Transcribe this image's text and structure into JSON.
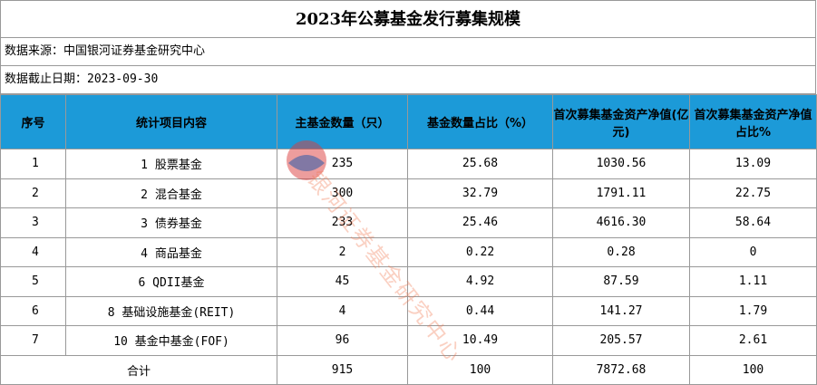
{
  "title": "2023年公募基金发行募集规模",
  "source": "数据来源：中国银河证券基金研究中心",
  "date": "数据截止日期：2023-09-30",
  "table": {
    "header": [
      "序号",
      "统计项目内容",
      "主基金数量（只）",
      "基金数量占比（%）",
      "首次募集基金资产净值(亿元)",
      "首次募集基金资产净值占比%"
    ],
    "rows": [
      [
        "1",
        "1 股票基金",
        "235",
        "25.68",
        "1030.56",
        "13.09"
      ],
      [
        "2",
        "2 混合基金",
        "300",
        "32.79",
        "1791.11",
        "22.75"
      ],
      [
        "3",
        "3 债券基金",
        "233",
        "25.46",
        "4616.30",
        "58.64"
      ],
      [
        "4",
        "4 商品基金",
        "2",
        "0.22",
        "0.28",
        "0"
      ],
      [
        "5",
        "6 QDII基金",
        "45",
        "4.92",
        "87.59",
        "1.11"
      ],
      [
        "6",
        "8 基础设施基金(REIT)",
        "4",
        "0.44",
        "141.27",
        "1.79"
      ],
      [
        "7",
        "10 基金中基金(FOF)",
        "96",
        "10.49",
        "205.57",
        "2.61"
      ]
    ],
    "total": [
      "合计",
      "915",
      "100",
      "7872.68",
      "100"
    ]
  },
  "watermark": "银河证券基金研究中心"
}
